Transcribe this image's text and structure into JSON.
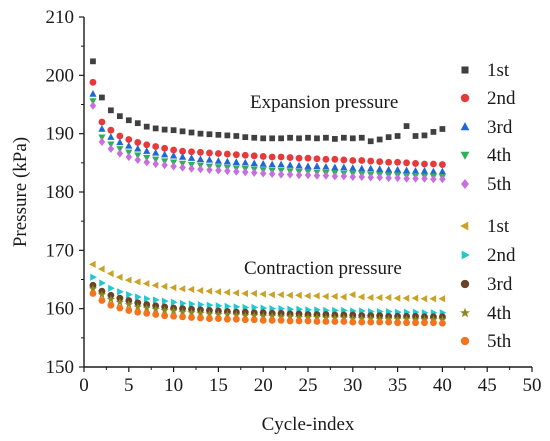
{
  "chart_data": {
    "type": "scatter",
    "xlabel": "Cycle-index",
    "ylabel": "Pressure (kPa)",
    "xlim": [
      0,
      50
    ],
    "ylim": [
      150,
      210
    ],
    "xticks": [
      0,
      5,
      10,
      15,
      20,
      25,
      30,
      35,
      40,
      45,
      50
    ],
    "yticks": [
      150,
      160,
      170,
      180,
      190,
      200,
      210
    ],
    "grid": false,
    "legend_position": "right",
    "x": [
      1,
      2,
      3,
      4,
      5,
      6,
      7,
      8,
      9,
      10,
      11,
      12,
      13,
      14,
      15,
      16,
      17,
      18,
      19,
      20,
      21,
      22,
      23,
      24,
      25,
      26,
      27,
      28,
      29,
      30,
      31,
      32,
      33,
      34,
      35,
      36,
      37,
      38,
      39,
      40
    ],
    "groups": [
      {
        "annotation": "Expansion pressure",
        "series": [
          {
            "name": "1st",
            "marker": "square",
            "color": "#404040",
            "values": [
              202.4,
              196.2,
              194.0,
              193.0,
              192.3,
              191.8,
              191.2,
              190.9,
              190.7,
              190.6,
              190.4,
              190.2,
              190.0,
              189.9,
              189.8,
              189.7,
              189.6,
              189.4,
              189.3,
              189.2,
              189.2,
              189.2,
              189.3,
              189.2,
              189.3,
              189.2,
              189.3,
              189.1,
              189.3,
              189.2,
              189.3,
              188.7,
              189.0,
              189.4,
              189.6,
              191.3,
              189.6,
              189.7,
              190.3,
              190.8
            ]
          },
          {
            "name": "2nd",
            "marker": "circle",
            "color": "#e8393a",
            "values": [
              198.8,
              192.0,
              190.6,
              189.6,
              189.0,
              188.5,
              188.1,
              187.8,
              187.5,
              187.2,
              187.0,
              186.9,
              186.8,
              186.7,
              186.6,
              186.5,
              186.4,
              186.3,
              186.2,
              186.1,
              186.0,
              186.0,
              185.9,
              185.8,
              185.8,
              185.7,
              185.6,
              185.6,
              185.5,
              185.4,
              185.4,
              185.3,
              185.2,
              185.1,
              185.1,
              185.0,
              184.9,
              184.8,
              184.8,
              184.7
            ]
          },
          {
            "name": "3rd",
            "marker": "triangle-up",
            "color": "#2166d6",
            "values": [
              196.8,
              190.8,
              189.4,
              188.5,
              187.9,
              187.4,
              187.0,
              186.7,
              186.4,
              186.2,
              186.0,
              185.8,
              185.6,
              185.5,
              185.3,
              185.2,
              185.1,
              185.0,
              184.9,
              184.8,
              184.7,
              184.7,
              184.6,
              184.5,
              184.4,
              184.4,
              184.3,
              184.2,
              184.2,
              184.1,
              184.0,
              184.0,
              183.9,
              183.8,
              183.8,
              183.7,
              183.6,
              183.6,
              183.5,
              183.5
            ]
          },
          {
            "name": "4th",
            "marker": "triangle-down",
            "color": "#2eb05a",
            "values": [
              195.6,
              189.4,
              188.2,
              187.4,
              186.8,
              186.3,
              185.9,
              185.6,
              185.3,
              185.1,
              184.9,
              184.7,
              184.6,
              184.4,
              184.3,
              184.2,
              184.1,
              184.0,
              183.9,
              183.8,
              183.7,
              183.7,
              183.6,
              183.5,
              183.5,
              183.4,
              183.3,
              183.3,
              183.2,
              183.2,
              183.1,
              183.0,
              183.0,
              182.9,
              182.9,
              182.8,
              182.8,
              182.7,
              182.7,
              182.6
            ]
          },
          {
            "name": "5th",
            "marker": "diamond",
            "color": "#c76ee0",
            "values": [
              194.8,
              188.6,
              187.4,
              186.6,
              186.0,
              185.5,
              185.1,
              184.8,
              184.6,
              184.4,
              184.2,
              184.0,
              183.9,
              183.8,
              183.7,
              183.6,
              183.5,
              183.4,
              183.3,
              183.2,
              183.1,
              183.0,
              183.0,
              182.9,
              182.9,
              182.8,
              182.8,
              182.7,
              182.7,
              182.6,
              182.6,
              182.5,
              182.5,
              182.4,
              182.4,
              182.3,
              182.3,
              182.3,
              182.2,
              182.2
            ]
          }
        ]
      },
      {
        "annotation": "Contraction pressure",
        "series": [
          {
            "name": "1st",
            "marker": "triangle-left",
            "color": "#c9a227",
            "values": [
              167.6,
              166.8,
              166.0,
              165.4,
              164.9,
              164.6,
              164.3,
              164.0,
              163.8,
              163.6,
              163.4,
              163.3,
              163.1,
              163.0,
              162.9,
              162.8,
              162.7,
              162.6,
              162.6,
              162.5,
              162.4,
              162.4,
              162.3,
              162.3,
              162.2,
              162.2,
              162.1,
              162.1,
              162.0,
              162.4,
              162.0,
              161.9,
              161.9,
              161.9,
              161.8,
              161.8,
              161.8,
              161.7,
              161.7,
              161.7
            ]
          },
          {
            "name": "2nd",
            "marker": "triangle-right",
            "color": "#1fc9cf",
            "values": [
              165.4,
              164.4,
              163.5,
              162.9,
              162.4,
              162.0,
              161.7,
              161.5,
              161.3,
              161.1,
              160.9,
              160.8,
              160.7,
              160.6,
              160.5,
              160.4,
              160.3,
              160.2,
              160.2,
              160.1,
              160.0,
              160.0,
              159.9,
              159.9,
              159.8,
              159.8,
              159.7,
              159.7,
              159.7,
              159.6,
              159.6,
              159.5,
              159.5,
              159.5,
              159.4,
              159.4,
              159.4,
              159.3,
              159.3,
              159.3
            ]
          },
          {
            "name": "3rd",
            "marker": "circle",
            "color": "#6b4226",
            "values": [
              164.0,
              163.0,
              162.3,
              161.8,
              161.4,
              161.0,
              160.7,
              160.5,
              160.3,
              160.1,
              160.0,
              159.9,
              159.8,
              159.7,
              159.6,
              159.5,
              159.4,
              159.4,
              159.3,
              159.3,
              159.2,
              159.2,
              159.1,
              159.1,
              159.0,
              159.0,
              159.0,
              158.9,
              158.9,
              158.9,
              158.8,
              158.8,
              158.8,
              158.7,
              158.7,
              158.7,
              158.7,
              158.6,
              158.6,
              158.6
            ]
          },
          {
            "name": "4th",
            "marker": "star",
            "color": "#8a8a1e",
            "values": [
              163.4,
              162.4,
              161.6,
              161.1,
              160.7,
              160.3,
              160.1,
              159.9,
              159.7,
              159.6,
              159.4,
              159.3,
              159.2,
              159.1,
              159.0,
              159.0,
              158.9,
              158.8,
              158.8,
              158.7,
              158.7,
              158.6,
              158.6,
              158.5,
              158.5,
              158.5,
              158.4,
              158.4,
              158.4,
              158.3,
              158.3,
              158.3,
              158.2,
              158.2,
              158.2,
              158.2,
              158.1,
              158.1,
              158.1,
              158.1
            ]
          },
          {
            "name": "5th",
            "marker": "circle",
            "color": "#f5731c",
            "values": [
              162.6,
              161.4,
              160.6,
              160.1,
              159.7,
              159.4,
              159.2,
              159.0,
              158.8,
              158.7,
              158.6,
              158.5,
              158.4,
              158.3,
              158.3,
              158.2,
              158.2,
              158.1,
              158.1,
              158.0,
              158.0,
              158.0,
              157.9,
              157.9,
              157.9,
              157.8,
              157.8,
              157.8,
              157.8,
              157.7,
              157.7,
              157.7,
              157.7,
              157.7,
              157.6,
              157.6,
              157.6,
              157.6,
              157.6,
              157.5
            ]
          }
        ]
      }
    ]
  }
}
